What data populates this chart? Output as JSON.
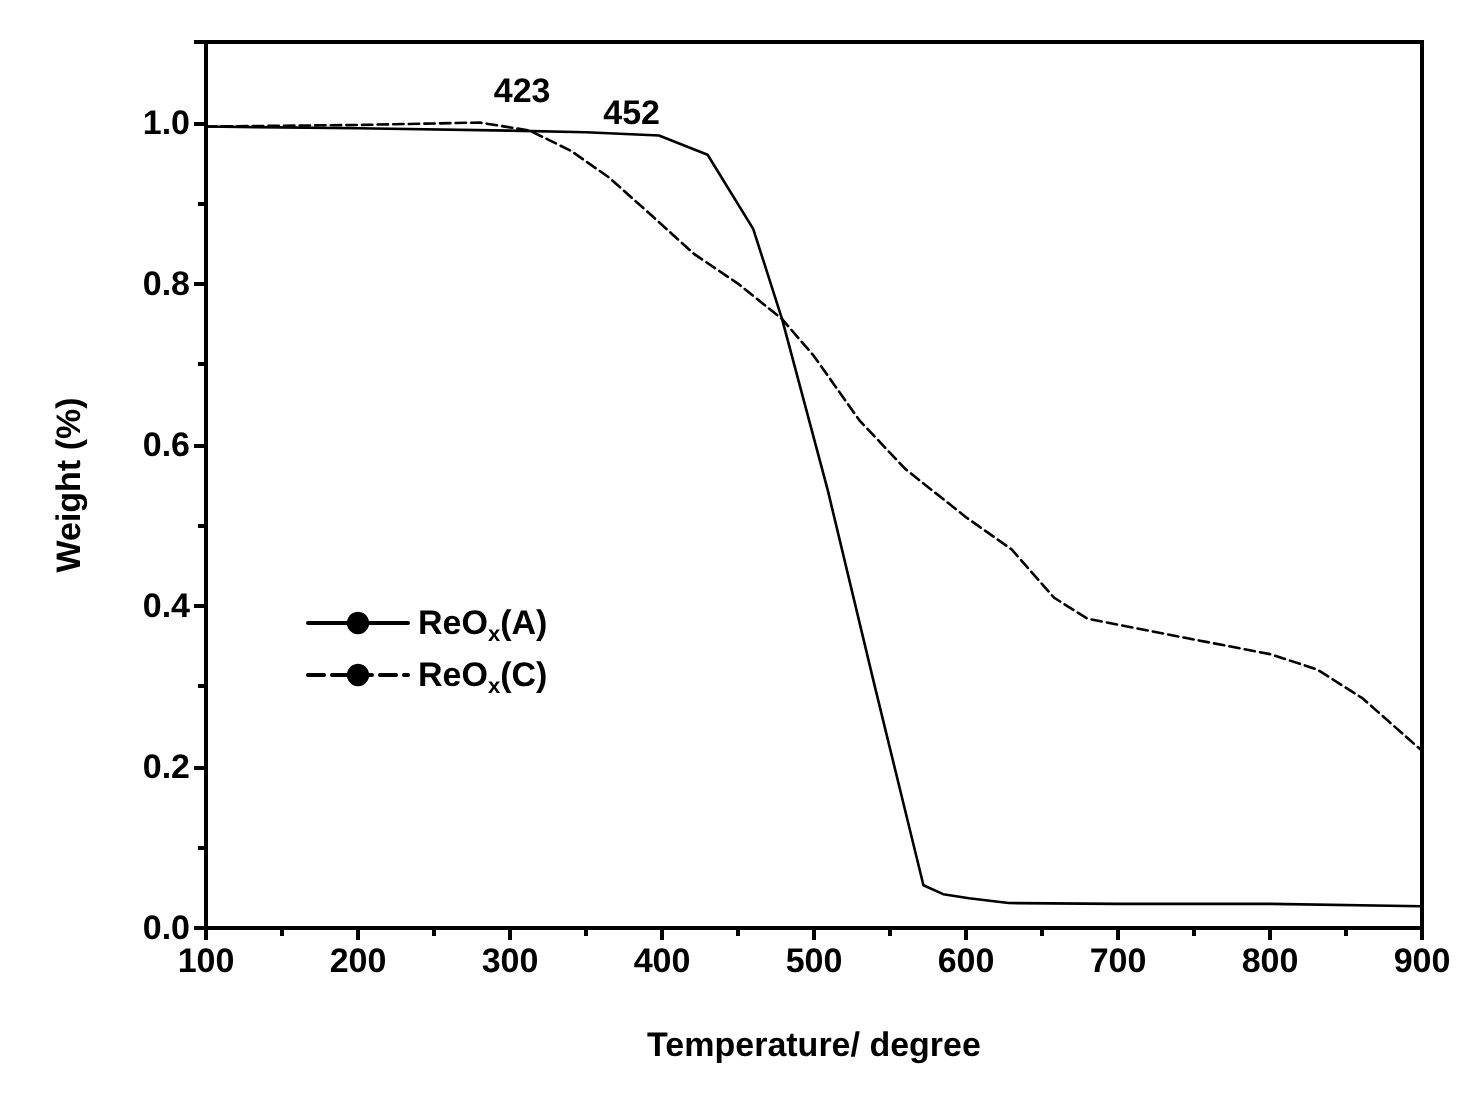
{
  "chart_data": {
    "type": "line",
    "xlabel": "Temperature/ degree",
    "ylabel": "Weight (%)",
    "xlim": [
      100,
      900
    ],
    "xticks": [
      100,
      200,
      300,
      400,
      500,
      600,
      700,
      800,
      900
    ],
    "ylim": [
      0,
      1.1
    ],
    "yticks": [
      {
        "value": 0,
        "label": "0.0"
      },
      0.2,
      0.4,
      0.6,
      0.8,
      {
        "value": 1,
        "label": "1.0"
      }
    ],
    "grid": false,
    "legend": "left",
    "marker": "none",
    "annotations": [
      "423",
      "452"
    ],
    "series": [
      {
        "name": "ReO$_{x}$(A)",
        "color": "#000000",
        "line_style": "solid",
        "x": [
          100,
          200,
          300,
          350,
          398,
          430,
          460,
          479,
          509,
          540,
          572,
          585,
          602,
          628,
          700,
          800,
          900
        ],
        "values": [
          0.995,
          0.993,
          0.99,
          0.988,
          0.984,
          0.96,
          0.868,
          0.756,
          0.544,
          0.3,
          0.053,
          0.042,
          0.037,
          0.031,
          0.03,
          0.03,
          0.027
        ]
      },
      {
        "name": "ReO$_{x}$(C)",
        "color": "#000000",
        "line_style": "dashed",
        "x": [
          100,
          200,
          280,
          313,
          340,
          365,
          390,
          421,
          450,
          479,
          500,
          530,
          560,
          600,
          630,
          658,
          680,
          745,
          800,
          831,
          861,
          900
        ],
        "values": [
          0.995,
          0.997,
          1.0,
          0.99,
          0.965,
          0.932,
          0.89,
          0.837,
          0.8,
          0.756,
          0.71,
          0.63,
          0.57,
          0.51,
          0.47,
          0.41,
          0.384,
          0.36,
          0.34,
          0.321,
          0.285,
          0.22
        ]
      }
    ]
  }
}
